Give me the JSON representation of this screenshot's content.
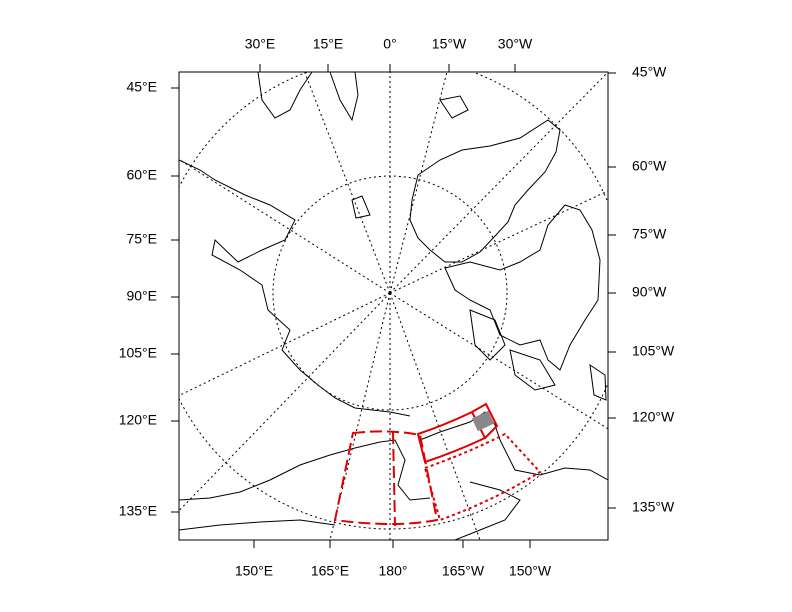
{
  "map": {
    "top_labels": [
      "30°E",
      "15°E",
      "0°",
      "15°W",
      "30°W"
    ],
    "right_labels": [
      "45°W",
      "60°W",
      "75°W",
      "90°W",
      "105°W",
      "120°W",
      "135°W"
    ],
    "left_labels": [
      "45°E",
      "60°E",
      "75°E",
      "90°E",
      "105°E",
      "120°E",
      "135°E"
    ],
    "bottom_labels": [
      "150°E",
      "165°E",
      "180°",
      "165°W",
      "150°W"
    ]
  }
}
